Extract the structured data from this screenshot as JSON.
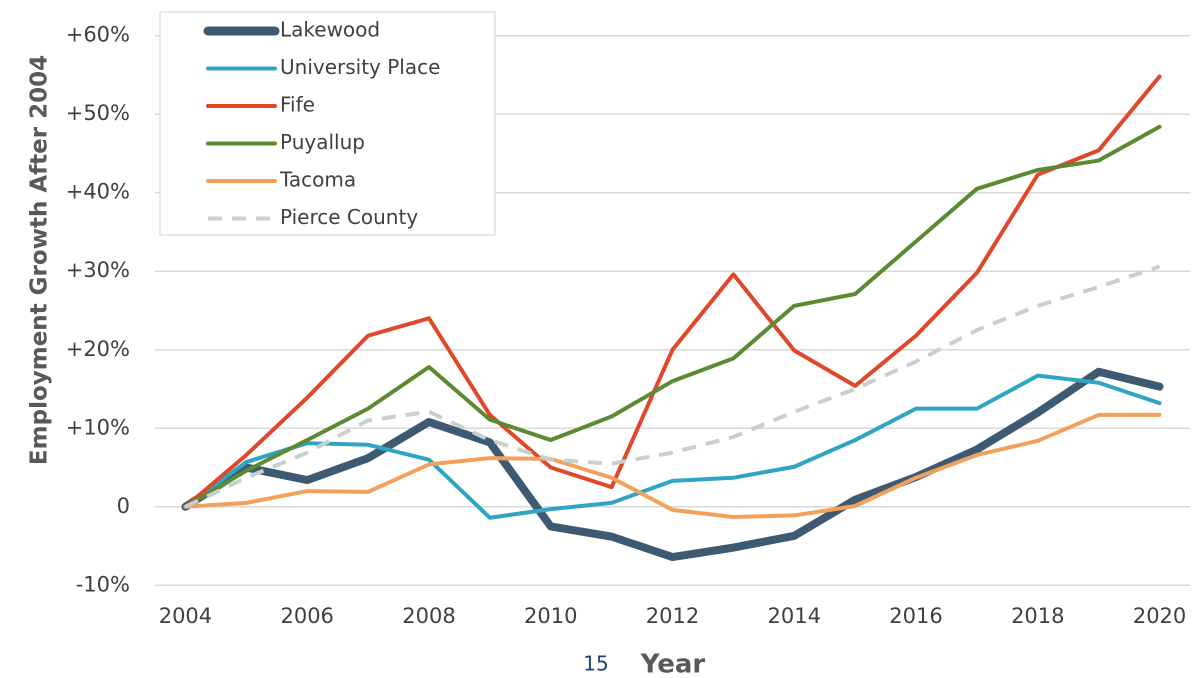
{
  "chart_data": {
    "type": "line",
    "y_axis_label": "Employment Growth After 2004",
    "x_axis_label": "Year",
    "x": [
      2004,
      2005,
      2006,
      2007,
      2008,
      2009,
      2010,
      2011,
      2012,
      2013,
      2014,
      2015,
      2016,
      2017,
      2018,
      2019,
      2020
    ],
    "series": [
      {
        "name": "Lakewood",
        "color": "#3e5a72",
        "values": [
          0,
          5,
          3.4,
          6.2,
          10.8,
          8.2,
          -2.5,
          -3.8,
          -6.4,
          -5.2,
          -3.7,
          0.9,
          3.8,
          7.3,
          12,
          17.2,
          15.3
        ]
      },
      {
        "name": "University Place",
        "color": "#2fa5c4",
        "values": [
          0,
          5.7,
          8.1,
          7.9,
          6,
          -1.4,
          -0.3,
          0.5,
          3.3,
          3.7,
          5.1,
          8.5,
          12.5,
          12.5,
          16.7,
          15.8,
          13.2
        ]
      },
      {
        "name": "Fife",
        "color": "#e0472b",
        "values": [
          0,
          6.6,
          13.9,
          21.8,
          24,
          11.7,
          5,
          2.5,
          20,
          29.6,
          19.9,
          15.4,
          21.8,
          29.8,
          42.3,
          45.4,
          54.8
        ]
      },
      {
        "name": "Puyallup",
        "color": "#5b8a33",
        "values": [
          0,
          4.6,
          8.5,
          12.5,
          17.8,
          11.1,
          8.5,
          11.5,
          16,
          18.9,
          25.6,
          27.1,
          33.8,
          40.5,
          42.9,
          44.1,
          48.4
        ]
      },
      {
        "name": "Tacoma",
        "color": "#f3a15a",
        "values": [
          0,
          0.5,
          2,
          1.9,
          5.4,
          6.2,
          6.1,
          3.7,
          -0.4,
          -1.3,
          -1.1,
          0.1,
          3.7,
          6.6,
          8.4,
          11.7,
          11.7
        ]
      },
      {
        "name": "Pierce County",
        "color": "#c6d1cd",
        "dashed": true,
        "values": [
          0,
          3.7,
          6.9,
          11,
          12.1,
          8.5,
          6,
          5.5,
          6.9,
          8.9,
          12.1,
          15,
          18.5,
          22.5,
          25.6,
          28,
          30.6
        ]
      }
    ],
    "xlim": [
      2003.5,
      2020.5
    ],
    "xticks": [
      2004,
      2006,
      2008,
      2010,
      2012,
      2014,
      2016,
      2018,
      2020
    ],
    "ylim": [
      -12,
      62
    ],
    "yticks": [
      {
        "value": -10,
        "label": "-10%"
      },
      0,
      {
        "value": 10,
        "label": "+10%"
      },
      {
        "value": 20,
        "label": "+20%"
      },
      {
        "value": 30,
        "label": "+30%"
      },
      {
        "value": 40,
        "label": "+40%"
      },
      {
        "value": 50,
        "label": "+50%"
      },
      {
        "value": 60,
        "label": "+60%"
      }
    ],
    "grid": true,
    "legend": "upper left"
  },
  "page_number": "15"
}
